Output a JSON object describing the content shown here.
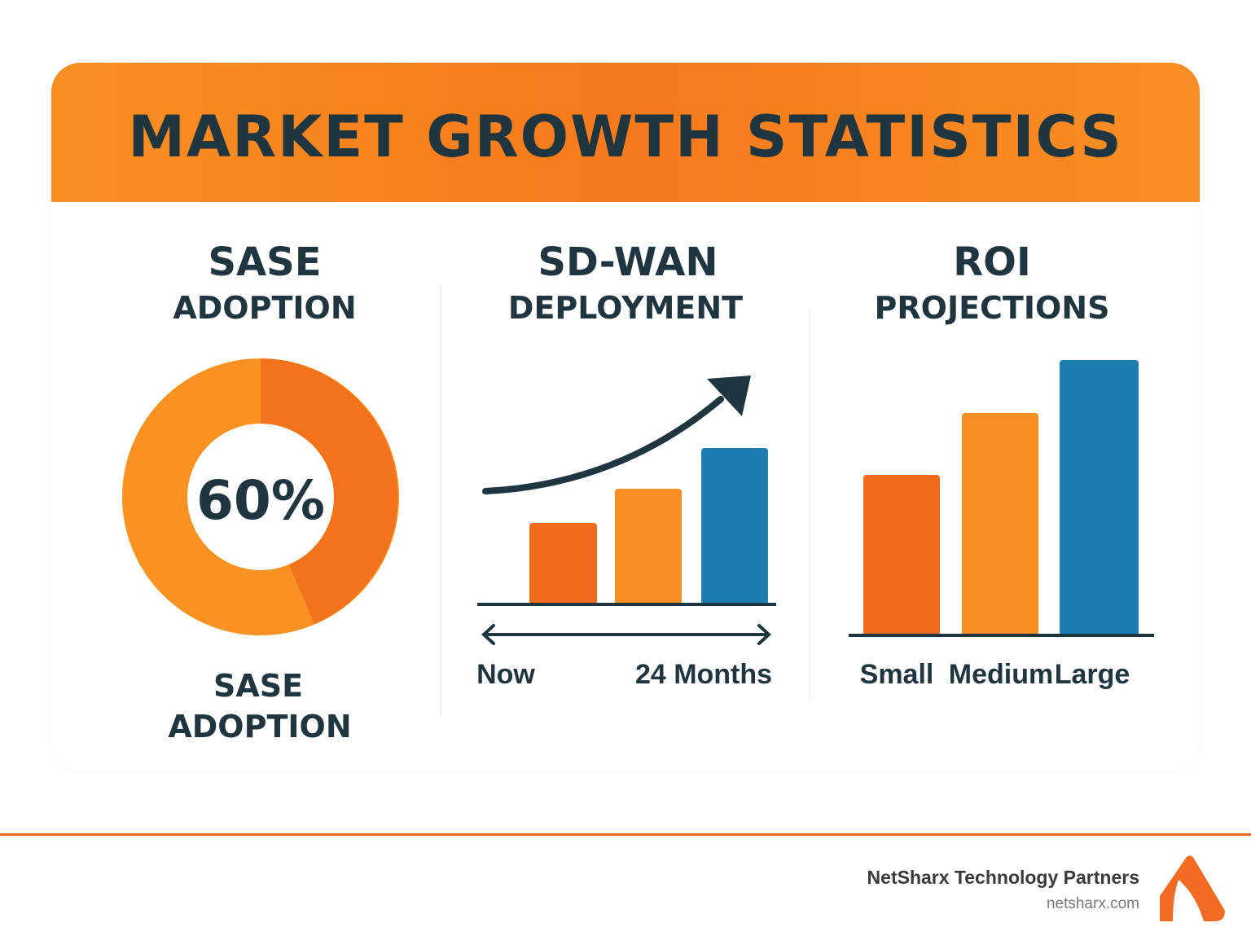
{
  "header": {
    "title": "MARKET GROWTH STATISTICS"
  },
  "panels": {
    "sase": {
      "title": "SASE",
      "subtitle": "ADOPTION",
      "value_label": "60%",
      "footer_line1": "SASE",
      "footer_line2": "ADOPTION"
    },
    "sdwan": {
      "title": "SD-WAN",
      "subtitle": "DEPLOYMENT",
      "start_label": "Now",
      "end_label": "24 Months"
    },
    "roi": {
      "title": "ROI",
      "subtitle": "PROJECTIONS",
      "labels": [
        "Small",
        "Medium",
        "Large"
      ]
    }
  },
  "footer": {
    "company": "NetSharx Technology Partners",
    "website": "netsharx.com",
    "logo": "netsharx-logo"
  },
  "colors": {
    "accent": "#f57a1c",
    "dark_orange": "#f26b1d",
    "light_orange": "#f98f22",
    "blue": "#1b7db0",
    "text": "#1f3540"
  }
}
